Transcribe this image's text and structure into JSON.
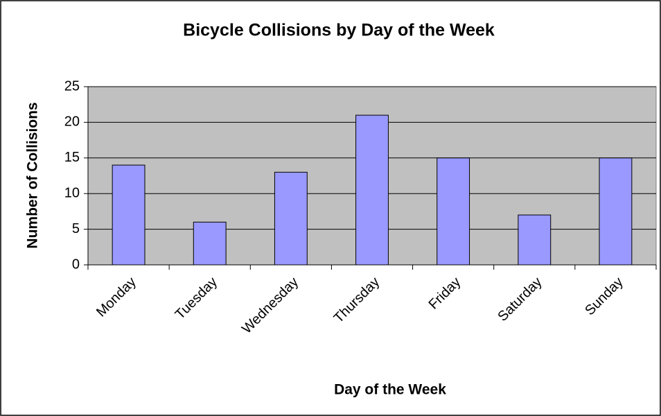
{
  "chart_data": {
    "type": "bar",
    "title": "Bicycle Collisions by Day of the Week",
    "x_label": "Day of the Week",
    "y_label": "Number of Collisions",
    "categories": [
      "Monday",
      "Tuesday",
      "Wednesday",
      "Thursday",
      "Friday",
      "Saturday",
      "Sunday"
    ],
    "values": [
      14,
      6,
      13,
      21,
      15,
      7,
      15
    ],
    "color": "#9999ff",
    "ylim": [
      0,
      25
    ],
    "yticks": [
      0,
      5,
      10,
      15,
      20,
      25
    ],
    "grid": true
  }
}
